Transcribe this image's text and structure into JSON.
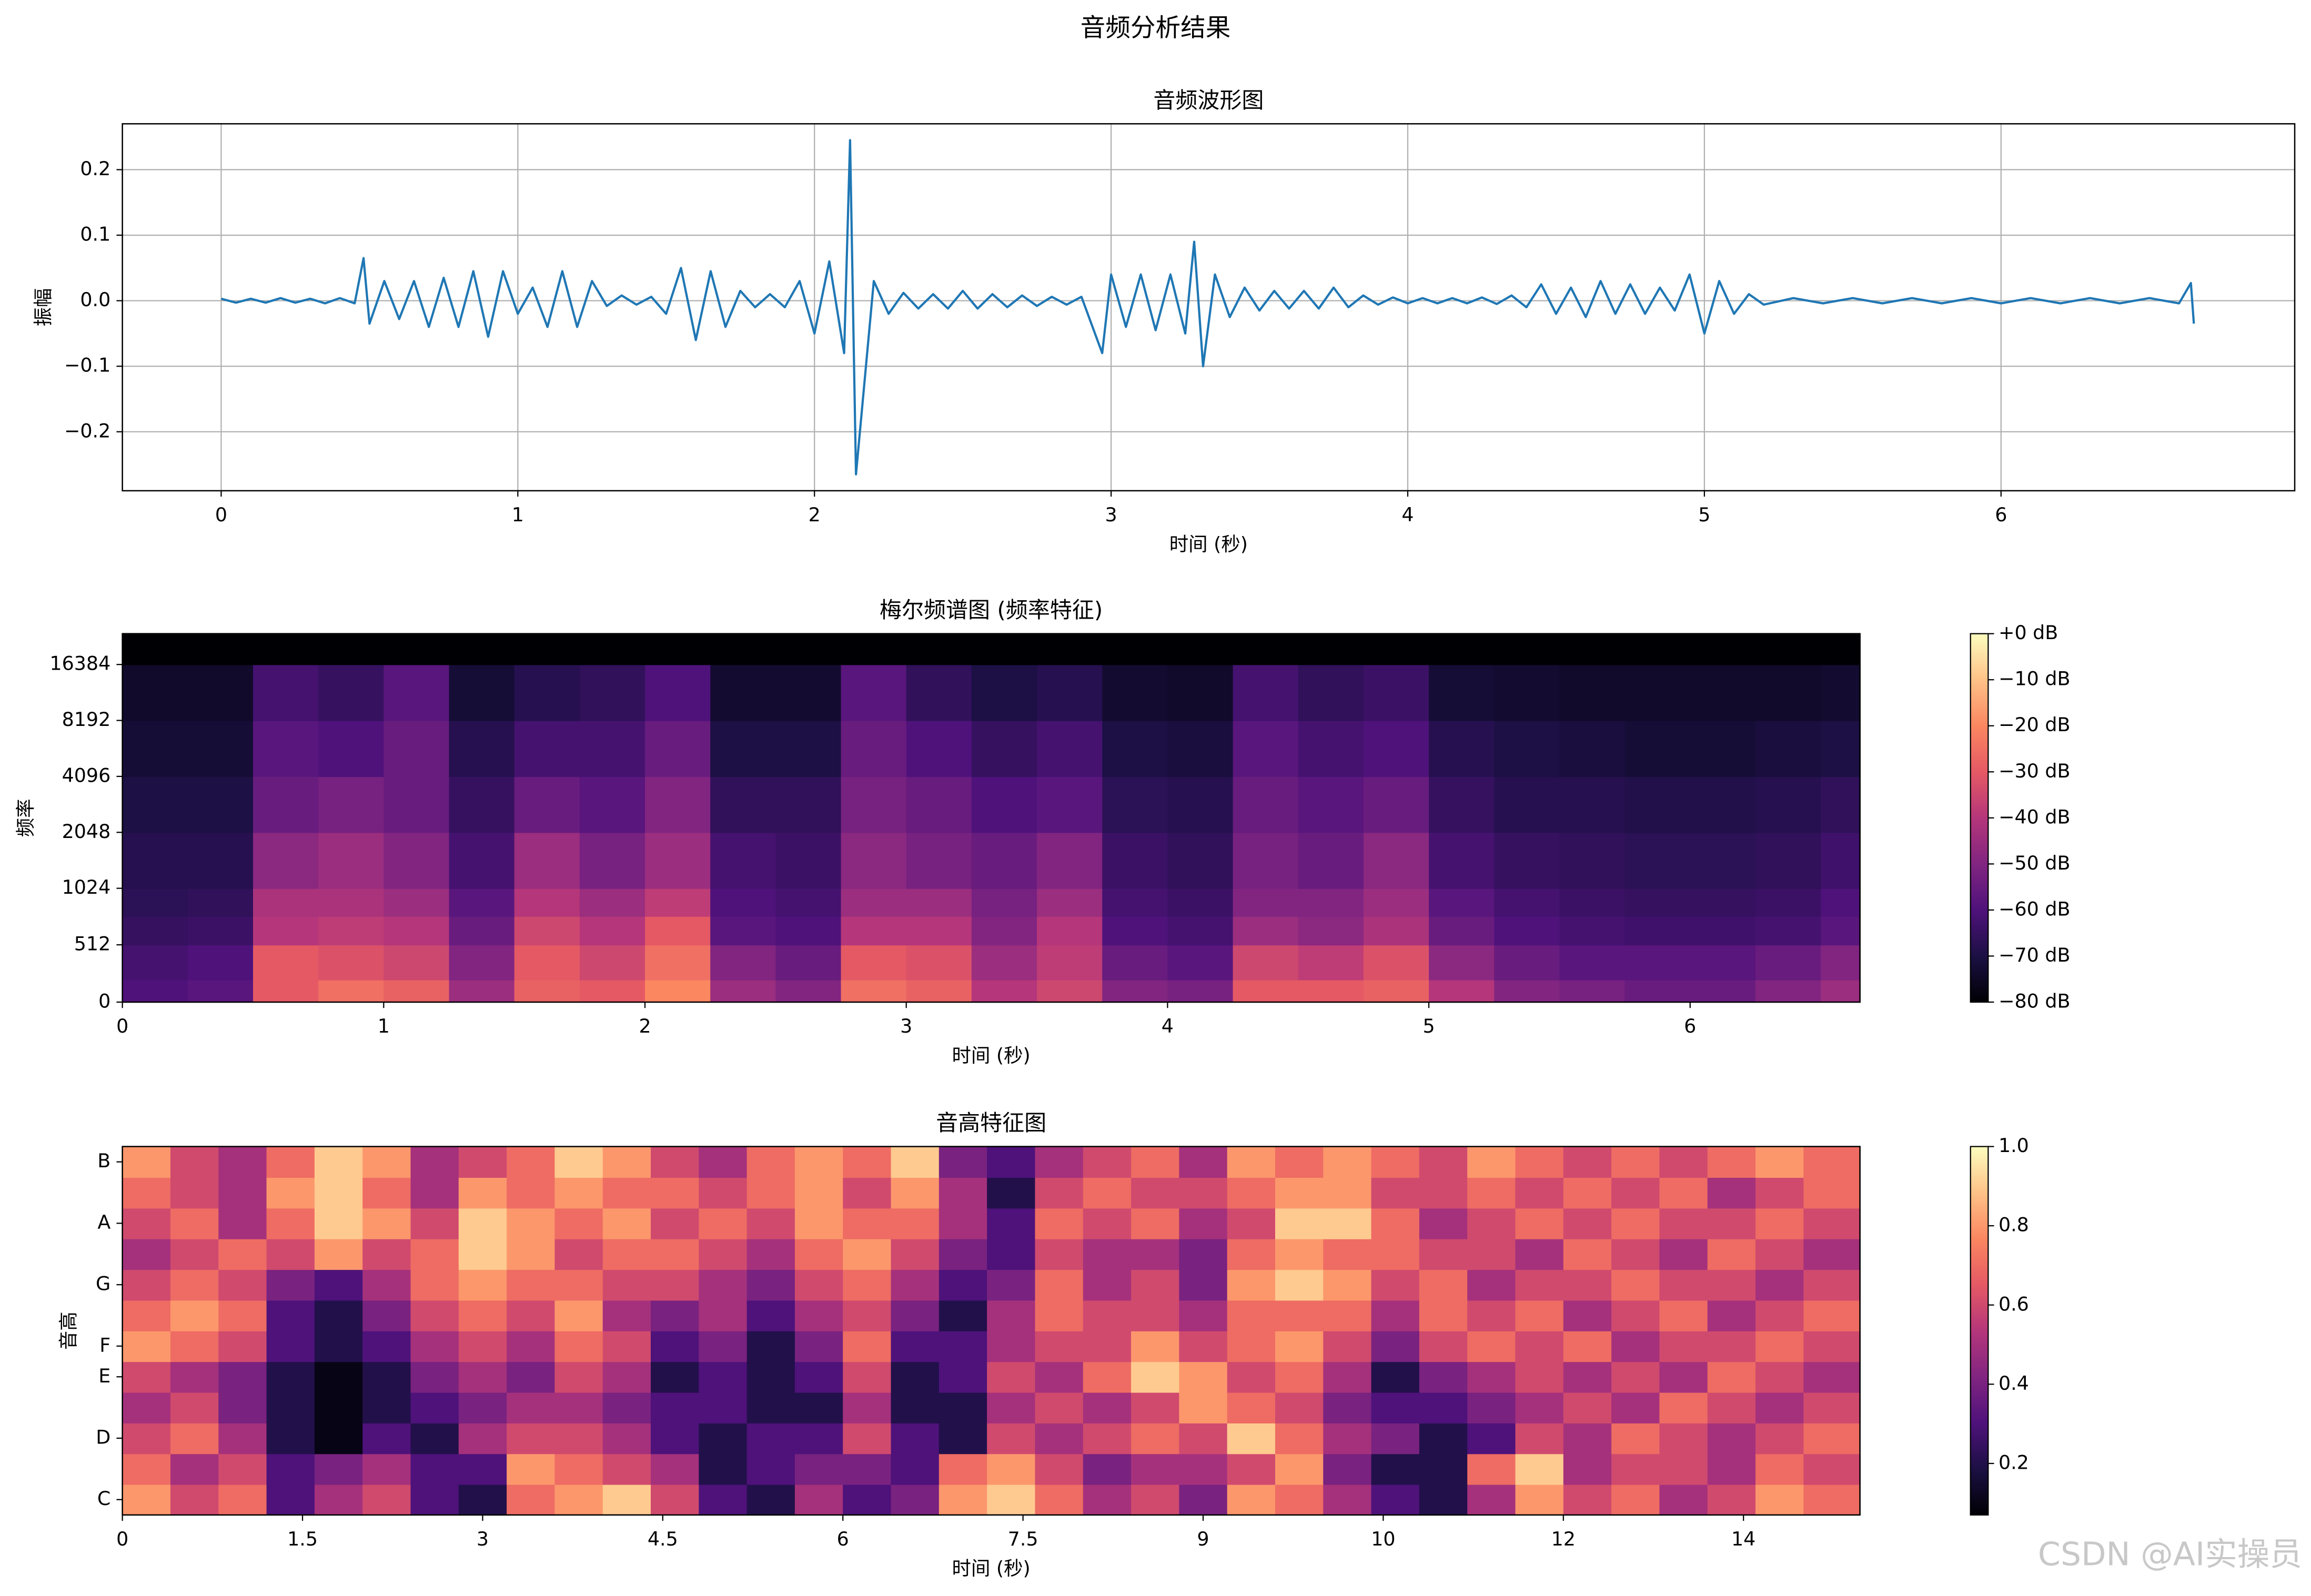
{
  "title": "音频分析结果",
  "watermark": "CSDN @AI实操员",
  "chart_data": [
    {
      "type": "line",
      "title": "音频波形图",
      "xlabel": "时间 (秒)",
      "ylabel": "振幅",
      "color": "#1f77b4",
      "grid": true,
      "x": [
        0,
        0.05,
        0.1,
        0.15,
        0.2,
        0.25,
        0.3,
        0.35,
        0.4,
        0.45,
        0.48,
        0.5,
        0.55,
        0.6,
        0.65,
        0.7,
        0.75,
        0.8,
        0.85,
        0.9,
        0.95,
        1.0,
        1.05,
        1.1,
        1.15,
        1.2,
        1.25,
        1.3,
        1.35,
        1.4,
        1.45,
        1.5,
        1.55,
        1.6,
        1.65,
        1.7,
        1.75,
        1.8,
        1.85,
        1.9,
        1.95,
        2.0,
        2.05,
        2.1,
        2.12,
        2.14,
        2.2,
        2.25,
        2.3,
        2.35,
        2.4,
        2.45,
        2.5,
        2.55,
        2.6,
        2.65,
        2.7,
        2.75,
        2.8,
        2.85,
        2.9,
        2.97,
        3.0,
        3.05,
        3.1,
        3.15,
        3.2,
        3.25,
        3.28,
        3.31,
        3.35,
        3.4,
        3.45,
        3.5,
        3.55,
        3.6,
        3.65,
        3.7,
        3.75,
        3.8,
        3.85,
        3.9,
        3.95,
        4.0,
        4.05,
        4.1,
        4.15,
        4.2,
        4.25,
        4.3,
        4.35,
        4.4,
        4.45,
        4.5,
        4.55,
        4.6,
        4.65,
        4.7,
        4.75,
        4.8,
        4.85,
        4.9,
        4.95,
        5.0,
        5.05,
        5.1,
        5.15,
        5.2,
        5.3,
        5.4,
        5.5,
        5.6,
        5.7,
        5.8,
        5.9,
        6.0,
        6.1,
        6.2,
        6.3,
        6.4,
        6.5,
        6.6,
        6.64,
        6.65
      ],
      "values": [
        0.003,
        -0.003,
        0.003,
        -0.003,
        0.004,
        -0.003,
        0.003,
        -0.004,
        0.004,
        -0.004,
        0.065,
        -0.035,
        0.03,
        -0.028,
        0.03,
        -0.04,
        0.035,
        -0.04,
        0.045,
        -0.055,
        0.045,
        -0.02,
        0.02,
        -0.04,
        0.045,
        -0.04,
        0.03,
        -0.008,
        0.008,
        -0.006,
        0.006,
        -0.02,
        0.05,
        -0.06,
        0.045,
        -0.04,
        0.015,
        -0.01,
        0.01,
        -0.01,
        0.03,
        -0.05,
        0.06,
        -0.08,
        0.245,
        -0.265,
        0.03,
        -0.02,
        0.012,
        -0.012,
        0.01,
        -0.012,
        0.015,
        -0.012,
        0.01,
        -0.01,
        0.008,
        -0.008,
        0.006,
        -0.006,
        0.006,
        -0.08,
        0.04,
        -0.04,
        0.04,
        -0.045,
        0.04,
        -0.05,
        0.09,
        -0.1,
        0.04,
        -0.025,
        0.02,
        -0.015,
        0.015,
        -0.012,
        0.015,
        -0.012,
        0.02,
        -0.01,
        0.008,
        -0.006,
        0.005,
        -0.004,
        0.004,
        -0.004,
        0.004,
        -0.004,
        0.005,
        -0.005,
        0.008,
        -0.01,
        0.025,
        -0.02,
        0.02,
        -0.025,
        0.03,
        -0.02,
        0.025,
        -0.02,
        0.02,
        -0.015,
        0.04,
        -0.05,
        0.03,
        -0.02,
        0.01,
        -0.006,
        0.004,
        -0.004,
        0.004,
        -0.004,
        0.004,
        -0.004,
        0.004,
        -0.004,
        0.004,
        -0.004,
        0.004,
        -0.004,
        0.004,
        -0.004,
        0.027,
        -0.035
      ],
      "xlim": [
        -0.333,
        6.99
      ],
      "ylim": [
        -0.29,
        0.27
      ],
      "xticks": [
        0,
        1,
        2,
        3,
        4,
        5,
        6
      ],
      "yticks": [
        {
          "value": -0.2,
          "label": "−0.2"
        },
        {
          "value": -0.1,
          "label": "−0.1"
        },
        {
          "value": 0.0,
          "label": "0.0"
        },
        0.1,
        0.2
      ]
    },
    {
      "type": "heatmap",
      "title": "梅尔频谱图 (频率特征)",
      "xlabel": "时间 (秒)",
      "ylabel": "频率",
      "xbins": [
        0,
        0.25,
        0.5,
        0.75,
        1.0,
        1.25,
        1.5,
        1.75,
        2.0,
        2.25,
        2.5,
        2.75,
        3.0,
        3.25,
        3.5,
        3.75,
        4.0,
        4.25,
        4.5,
        4.75,
        5.0,
        5.25,
        5.5,
        5.75,
        6.0,
        6.25,
        6.5,
        6.65
      ],
      "ybins": [
        0,
        200,
        512,
        768,
        1024,
        2048,
        4096,
        8192,
        16384,
        24000
      ],
      "values": [
        [
          -60,
          -58,
          -30,
          -25,
          -28,
          -45,
          -28,
          -30,
          -20,
          -45,
          -50,
          -25,
          -28,
          -40,
          -35,
          -50,
          -52,
          -30,
          -30,
          -28,
          -40,
          -50,
          -52,
          -55,
          -55,
          -50,
          -45
        ],
        [
          -62,
          -60,
          -30,
          -32,
          -35,
          -50,
          -30,
          -35,
          -25,
          -50,
          -55,
          -30,
          -32,
          -45,
          -38,
          -55,
          -58,
          -35,
          -38,
          -32,
          -48,
          -55,
          -58,
          -58,
          -58,
          -55,
          -50
        ],
        [
          -65,
          -64,
          -40,
          -38,
          -40,
          -55,
          -35,
          -40,
          -30,
          -58,
          -60,
          -40,
          -40,
          -50,
          -40,
          -60,
          -62,
          -45,
          -48,
          -42,
          -55,
          -60,
          -62,
          -63,
          -63,
          -62,
          -58
        ],
        [
          -67,
          -66,
          -42,
          -42,
          -45,
          -58,
          -40,
          -45,
          -38,
          -60,
          -62,
          -45,
          -45,
          -52,
          -45,
          -62,
          -64,
          -50,
          -50,
          -45,
          -58,
          -62,
          -64,
          -65,
          -65,
          -64,
          -60
        ],
        [
          -68,
          -68,
          -48,
          -45,
          -50,
          -62,
          -45,
          -52,
          -45,
          -62,
          -64,
          -48,
          -52,
          -55,
          -50,
          -64,
          -66,
          -52,
          -55,
          -48,
          -62,
          -65,
          -66,
          -67,
          -67,
          -66,
          -63
        ],
        [
          -70,
          -70,
          -55,
          -52,
          -55,
          -65,
          -55,
          -58,
          -50,
          -66,
          -66,
          -52,
          -55,
          -60,
          -58,
          -67,
          -68,
          -55,
          -58,
          -55,
          -65,
          -68,
          -68,
          -69,
          -69,
          -68,
          -66
        ],
        [
          -72,
          -72,
          -58,
          -60,
          -55,
          -68,
          -62,
          -62,
          -55,
          -70,
          -70,
          -55,
          -60,
          -65,
          -62,
          -70,
          -71,
          -58,
          -62,
          -60,
          -68,
          -70,
          -71,
          -72,
          -72,
          -71,
          -70
        ],
        [
          -74,
          -74,
          -62,
          -65,
          -58,
          -72,
          -68,
          -66,
          -60,
          -73,
          -73,
          -58,
          -66,
          -70,
          -68,
          -73,
          -74,
          -62,
          -66,
          -64,
          -72,
          -73,
          -74,
          -74,
          -74,
          -74,
          -73
        ],
        [
          -80,
          -80,
          -80,
          -80,
          -80,
          -80,
          -80,
          -80,
          -80,
          -80,
          -80,
          -80,
          -80,
          -80,
          -80,
          -80,
          -80,
          -80,
          -80,
          -80,
          -80,
          -80,
          -80,
          -80,
          -80,
          -80,
          -80
        ]
      ],
      "xlim": [
        0,
        6.65
      ],
      "ylim": [
        0,
        24000
      ],
      "yscale": "symlog",
      "ylinthresh": 1000,
      "xticks": [
        0,
        1,
        2,
        3,
        4,
        5,
        6
      ],
      "yticks": [
        0,
        512,
        1024,
        2048,
        4096,
        8192,
        16384
      ],
      "colormap": [
        "#000004",
        "#1c1044",
        "#4f127b",
        "#812581",
        "#b5367a",
        "#e55964",
        "#fb8761",
        "#fec287",
        "#fcfdbf"
      ],
      "clim": [
        -80,
        0
      ],
      "cticks": [
        {
          "value": 0,
          "label": "+0 dB"
        },
        {
          "value": -10,
          "label": "−10 dB"
        },
        {
          "value": -20,
          "label": "−20 dB"
        },
        {
          "value": -30,
          "label": "−30 dB"
        },
        {
          "value": -40,
          "label": "−40 dB"
        },
        {
          "value": -50,
          "label": "−50 dB"
        },
        {
          "value": -60,
          "label": "−60 dB"
        },
        {
          "value": -70,
          "label": "−70 dB"
        },
        {
          "value": -80,
          "label": "−80 dB"
        }
      ]
    },
    {
      "type": "heatmap",
      "title": "音高特征图",
      "xlabel": "时间 (秒)",
      "ylabel": "音高",
      "xbins": [
        0,
        0.4,
        0.8,
        1.2,
        1.6,
        2.0,
        2.4,
        2.8,
        3.2,
        3.6,
        4.0,
        4.4,
        4.8,
        5.2,
        5.6,
        6.0,
        6.4,
        6.8,
        7.2,
        7.6,
        8.0,
        8.4,
        8.8,
        9.2,
        9.6,
        10.0,
        10.4,
        10.8,
        11.2,
        11.6,
        12.0,
        12.4,
        12.8,
        13.2,
        13.6,
        14.0,
        14.47
      ],
      "categories": [
        "C",
        null,
        "D",
        null,
        "E",
        "F",
        null,
        "G",
        null,
        "A",
        null,
        "B"
      ],
      "values": [
        [
          0.8,
          0.6,
          0.7,
          0.3,
          0.5,
          0.6,
          0.3,
          0.2,
          0.7,
          0.8,
          0.9,
          0.6,
          0.3,
          0.2,
          0.5,
          0.3,
          0.4,
          0.8,
          0.9,
          0.7,
          0.5,
          0.6,
          0.4,
          0.8,
          0.7,
          0.5,
          0.3,
          0.2,
          0.5,
          0.8,
          0.6,
          0.7,
          0.5,
          0.6,
          0.8,
          0.7
        ],
        [
          0.7,
          0.5,
          0.6,
          0.3,
          0.4,
          0.5,
          0.3,
          0.3,
          0.8,
          0.7,
          0.6,
          0.5,
          0.2,
          0.3,
          0.4,
          0.4,
          0.3,
          0.7,
          0.8,
          0.6,
          0.4,
          0.5,
          0.5,
          0.6,
          0.8,
          0.4,
          0.2,
          0.2,
          0.7,
          0.9,
          0.5,
          0.6,
          0.6,
          0.5,
          0.7,
          0.6
        ],
        [
          0.6,
          0.7,
          0.5,
          0.2,
          0.1,
          0.3,
          0.2,
          0.5,
          0.6,
          0.6,
          0.5,
          0.3,
          0.2,
          0.3,
          0.3,
          0.6,
          0.3,
          0.2,
          0.6,
          0.5,
          0.6,
          0.7,
          0.6,
          0.9,
          0.7,
          0.5,
          0.4,
          0.2,
          0.3,
          0.6,
          0.5,
          0.7,
          0.6,
          0.5,
          0.6,
          0.7
        ],
        [
          0.5,
          0.6,
          0.4,
          0.2,
          0.1,
          0.2,
          0.3,
          0.4,
          0.5,
          0.5,
          0.4,
          0.3,
          0.3,
          0.2,
          0.2,
          0.5,
          0.2,
          0.2,
          0.5,
          0.6,
          0.5,
          0.6,
          0.8,
          0.7,
          0.6,
          0.4,
          0.3,
          0.3,
          0.4,
          0.5,
          0.6,
          0.5,
          0.7,
          0.6,
          0.5,
          0.6
        ],
        [
          0.6,
          0.5,
          0.4,
          0.2,
          0.1,
          0.2,
          0.4,
          0.5,
          0.4,
          0.6,
          0.5,
          0.2,
          0.3,
          0.2,
          0.3,
          0.6,
          0.2,
          0.3,
          0.6,
          0.5,
          0.7,
          0.9,
          0.8,
          0.6,
          0.7,
          0.5,
          0.2,
          0.4,
          0.5,
          0.6,
          0.5,
          0.6,
          0.5,
          0.7,
          0.6,
          0.5
        ],
        [
          0.8,
          0.7,
          0.6,
          0.3,
          0.2,
          0.3,
          0.5,
          0.6,
          0.5,
          0.7,
          0.6,
          0.3,
          0.4,
          0.2,
          0.4,
          0.7,
          0.3,
          0.3,
          0.5,
          0.6,
          0.6,
          0.8,
          0.6,
          0.7,
          0.8,
          0.6,
          0.4,
          0.6,
          0.7,
          0.6,
          0.7,
          0.5,
          0.6,
          0.6,
          0.7,
          0.6
        ],
        [
          0.7,
          0.8,
          0.7,
          0.3,
          0.2,
          0.4,
          0.6,
          0.7,
          0.6,
          0.8,
          0.5,
          0.4,
          0.5,
          0.3,
          0.5,
          0.6,
          0.4,
          0.2,
          0.5,
          0.7,
          0.6,
          0.6,
          0.5,
          0.7,
          0.7,
          0.7,
          0.5,
          0.7,
          0.6,
          0.7,
          0.5,
          0.6,
          0.7,
          0.5,
          0.6,
          0.7
        ],
        [
          0.6,
          0.7,
          0.6,
          0.4,
          0.3,
          0.5,
          0.7,
          0.8,
          0.7,
          0.7,
          0.6,
          0.6,
          0.5,
          0.4,
          0.6,
          0.7,
          0.5,
          0.3,
          0.4,
          0.7,
          0.5,
          0.6,
          0.4,
          0.8,
          0.9,
          0.8,
          0.6,
          0.7,
          0.5,
          0.6,
          0.6,
          0.7,
          0.6,
          0.6,
          0.5,
          0.6
        ],
        [
          0.5,
          0.6,
          0.7,
          0.6,
          0.8,
          0.6,
          0.7,
          0.9,
          0.8,
          0.6,
          0.7,
          0.7,
          0.6,
          0.5,
          0.7,
          0.8,
          0.6,
          0.4,
          0.3,
          0.6,
          0.5,
          0.5,
          0.4,
          0.7,
          0.8,
          0.7,
          0.7,
          0.6,
          0.6,
          0.5,
          0.7,
          0.6,
          0.5,
          0.7,
          0.6,
          0.5
        ],
        [
          0.6,
          0.7,
          0.5,
          0.7,
          0.9,
          0.8,
          0.6,
          0.9,
          0.8,
          0.7,
          0.8,
          0.6,
          0.7,
          0.6,
          0.8,
          0.7,
          0.7,
          0.5,
          0.3,
          0.7,
          0.6,
          0.7,
          0.5,
          0.6,
          0.9,
          0.9,
          0.7,
          0.5,
          0.6,
          0.7,
          0.6,
          0.7,
          0.6,
          0.6,
          0.7,
          0.6
        ],
        [
          0.7,
          0.6,
          0.5,
          0.8,
          0.9,
          0.7,
          0.5,
          0.8,
          0.7,
          0.8,
          0.7,
          0.7,
          0.6,
          0.7,
          0.8,
          0.6,
          0.8,
          0.5,
          0.2,
          0.6,
          0.7,
          0.6,
          0.6,
          0.7,
          0.8,
          0.8,
          0.6,
          0.6,
          0.7,
          0.6,
          0.7,
          0.6,
          0.7,
          0.5,
          0.6,
          0.7
        ],
        [
          0.8,
          0.6,
          0.5,
          0.7,
          0.9,
          0.8,
          0.5,
          0.6,
          0.7,
          0.9,
          0.8,
          0.6,
          0.5,
          0.7,
          0.8,
          0.7,
          0.9,
          0.4,
          0.3,
          0.5,
          0.6,
          0.7,
          0.5,
          0.8,
          0.7,
          0.8,
          0.7,
          0.6,
          0.8,
          0.7,
          0.6,
          0.7,
          0.6,
          0.7,
          0.8,
          0.7
        ]
      ],
      "xlim": [
        0,
        14.47
      ],
      "xticks": [
        0,
        1.5,
        3,
        4.5,
        6,
        7.5,
        9,
        {
          "value": 10.5,
          "label": "10"
        },
        12,
        {
          "value": 13.5,
          "label": "14"
        }
      ],
      "colormap": [
        "#000004",
        "#1c1044",
        "#4f127b",
        "#812581",
        "#b5367a",
        "#e55964",
        "#fb8761",
        "#fec287",
        "#fcfdbf"
      ],
      "clim": [
        0.07,
        1.0
      ],
      "cticks": [
        0.2,
        0.4,
        0.6,
        0.8,
        {
          "value": 1.0,
          "label": "1.0"
        }
      ]
    }
  ]
}
